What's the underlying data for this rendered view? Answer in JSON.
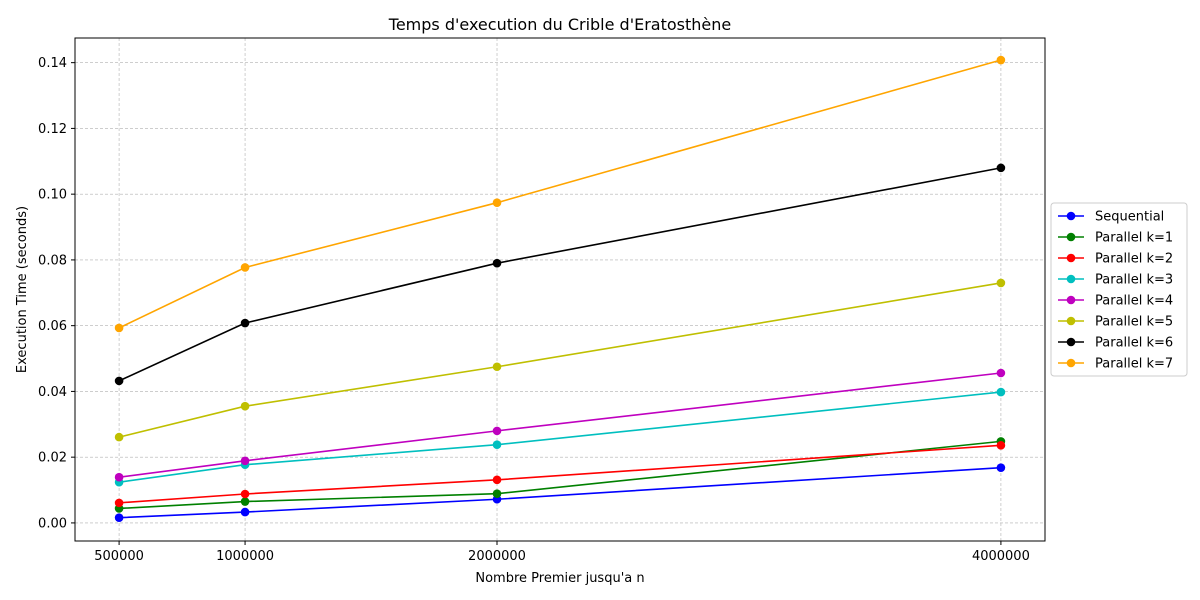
{
  "chart_data": {
    "type": "line",
    "title": "Temps d'execution du Crible d'Eratosthène",
    "xlabel": "Nombre Premier jusqu'a n",
    "ylabel": "Execution Time (seconds)",
    "x": [
      500000,
      1000000,
      2000000,
      4000000
    ],
    "x_tick_labels": [
      "500000",
      "1000000",
      "2000000",
      "4000000"
    ],
    "xlim": [
      325000,
      4175000
    ],
    "ylim": [
      -0.0055,
      0.1475
    ],
    "y_ticks": [
      0.0,
      0.02,
      0.04,
      0.06,
      0.08,
      0.1,
      0.12,
      0.14
    ],
    "y_tick_labels": [
      "0.00",
      "0.02",
      "0.04",
      "0.06",
      "0.08",
      "0.10",
      "0.12",
      "0.14"
    ],
    "grid": true,
    "legend_position": "outside-right",
    "series": [
      {
        "name": "Sequential",
        "color": "#0000ff",
        "values": [
          0.0016,
          0.0033,
          0.0072,
          0.0168
        ]
      },
      {
        "name": "Parallel k=1",
        "color": "#008000",
        "values": [
          0.0044,
          0.0065,
          0.0089,
          0.0248
        ]
      },
      {
        "name": "Parallel k=2",
        "color": "#ff0000",
        "values": [
          0.0061,
          0.0088,
          0.0131,
          0.0236
        ]
      },
      {
        "name": "Parallel k=3",
        "color": "#00bfbf",
        "values": [
          0.0124,
          0.0177,
          0.0238,
          0.0398
        ]
      },
      {
        "name": "Parallel k=4",
        "color": "#bf00bf",
        "values": [
          0.0139,
          0.0189,
          0.028,
          0.0456
        ]
      },
      {
        "name": "Parallel k=5",
        "color": "#bfbf00",
        "values": [
          0.0261,
          0.0355,
          0.0475,
          0.073
        ]
      },
      {
        "name": "Parallel k=6",
        "color": "#000000",
        "values": [
          0.0432,
          0.0608,
          0.079,
          0.108
        ]
      },
      {
        "name": "Parallel k=7",
        "color": "#ffa500",
        "values": [
          0.0593,
          0.0777,
          0.0974,
          0.1408
        ]
      }
    ]
  }
}
